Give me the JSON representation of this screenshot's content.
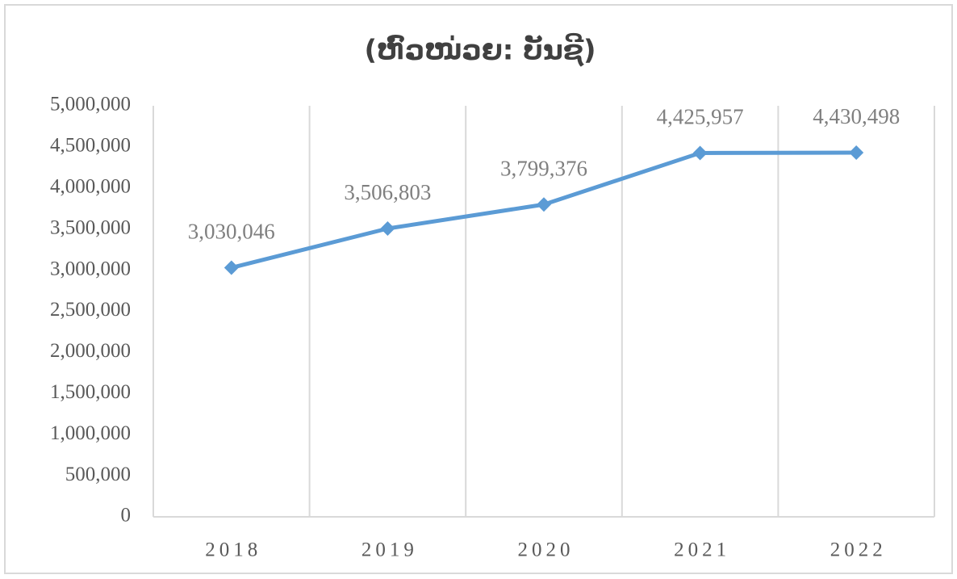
{
  "chart_data": {
    "type": "line",
    "title": "(ຫົວໜ່ວຍ: ບັນຊີ)",
    "categories": [
      "2018",
      "2019",
      "2020",
      "2021",
      "2022"
    ],
    "series": [
      {
        "color": "#5b9bd5",
        "values": [
          3030046,
          3506803,
          3799376,
          4425957,
          4430498
        ],
        "value_labels": [
          "3,030,046",
          "3,506,803",
          "3,799,376",
          "4,425,957",
          "4,430,498"
        ]
      }
    ],
    "ylim": [
      0,
      5000000
    ],
    "yticks": [
      0,
      {
        "value": 500000,
        "label": "500,000"
      },
      {
        "value": 1000000,
        "label": "1,000,000"
      },
      {
        "value": 1500000,
        "label": "1,500,000"
      },
      {
        "value": 2000000,
        "label": "2,000,000"
      },
      {
        "value": 2500000,
        "label": "2,500,000"
      },
      {
        "value": 3000000,
        "label": "3,000,000"
      },
      {
        "value": 3500000,
        "label": "3,500,000"
      },
      {
        "value": 4000000,
        "label": "4,000,000"
      },
      {
        "value": 4500000,
        "label": "4,500,000"
      },
      {
        "value": 5000000,
        "label": "5,000,000"
      }
    ]
  }
}
